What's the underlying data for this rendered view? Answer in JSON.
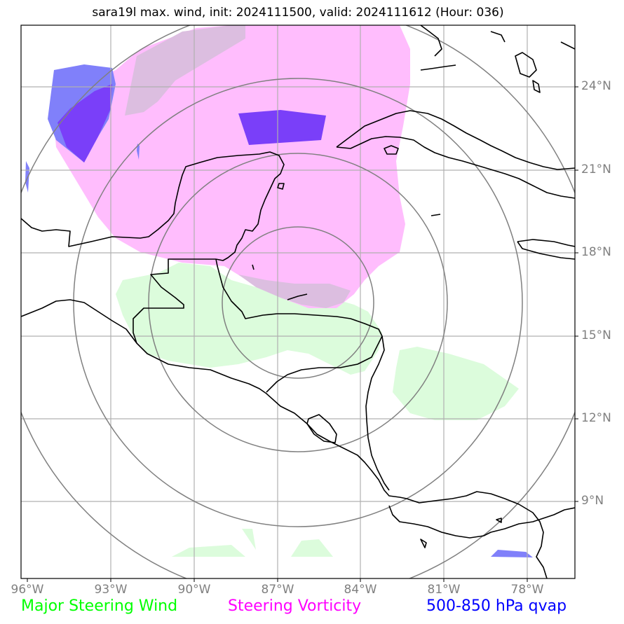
{
  "title": "sara19l max. wind, init: 2024111500, valid: 2024111612 (Hour: 036)",
  "lon_ticks": [
    "96°W",
    "93°W",
    "90°W",
    "87°W",
    "84°W",
    "81°W",
    "78°W"
  ],
  "lat_ticks": [
    "24°N",
    "21°N",
    "18°N",
    "15°N",
    "12°N",
    "9°N"
  ],
  "legend": [
    {
      "label": "Major Steering Wind",
      "color": "#00ff00"
    },
    {
      "label": "Steering Vorticity",
      "color": "#ff00ff"
    },
    {
      "label": "500-850 hPa qvap",
      "color": "#0000ff"
    }
  ],
  "colors": {
    "steering_wind_fill": "#dcfcdc",
    "vorticity_fill": "#ffbdfd",
    "qvap_light": "#8080fa",
    "qvap_dark": "#7a3ff9",
    "coast": "#000000",
    "grid": "#b0b0b0",
    "range_ring": "#808080"
  }
}
